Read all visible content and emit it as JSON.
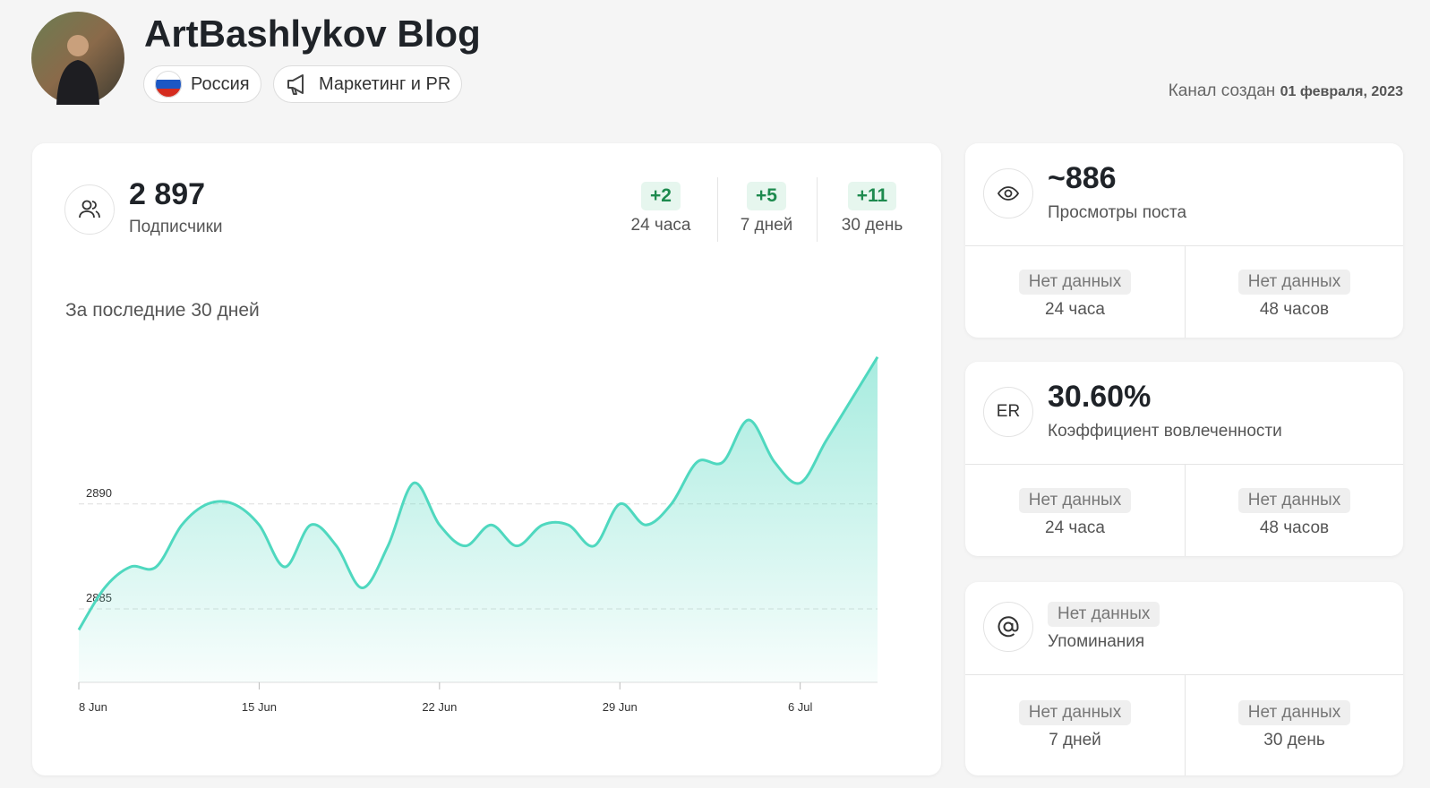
{
  "header": {
    "title": "ArtBashlykov Blog",
    "tags": [
      "Россия",
      "Маркетинг и PR"
    ],
    "created_label": "Канал создан",
    "created_date": "01 февраля, 2023"
  },
  "subscribers": {
    "value": "2 897",
    "label": "Подписчики",
    "deltas": [
      {
        "value": "+2",
        "label": "24 часа"
      },
      {
        "value": "+5",
        "label": "7 дней"
      },
      {
        "value": "+11",
        "label": "30 день"
      }
    ]
  },
  "chart_data": {
    "type": "area",
    "title": "За последние 30 дней",
    "color": "#4fd8bf",
    "categories": [
      "8 Jun",
      null,
      null,
      null,
      null,
      null,
      null,
      "15 Jun",
      null,
      null,
      null,
      null,
      null,
      null,
      "22 Jun",
      null,
      null,
      null,
      null,
      null,
      null,
      "29 Jun",
      null,
      null,
      null,
      null,
      null,
      null,
      "6 Jul",
      null,
      null,
      null
    ],
    "values": [
      2884,
      2886,
      2887,
      2887,
      2889,
      2890,
      2890,
      2889,
      2887,
      2889,
      2888,
      2886,
      2888,
      2891,
      2889,
      2888,
      2889,
      2888,
      2889,
      2889,
      2888,
      2890,
      2889,
      2890,
      2892,
      2892,
      2894,
      2892,
      2891,
      2893,
      2895,
      2897
    ],
    "ylim": [
      2881.5,
      2897.5
    ],
    "yticks": [
      2885,
      2890
    ],
    "grid": true
  },
  "views": {
    "value": "~886",
    "label": "Просмотры поста",
    "cells": [
      {
        "value": "Нет данных",
        "label": "24 часа"
      },
      {
        "value": "Нет данных",
        "label": "48 часов"
      }
    ]
  },
  "er": {
    "icon": "ER",
    "value": "30.60%",
    "label": "Коэффициент вовлеченности",
    "cells": [
      {
        "value": "Нет данных",
        "label": "24 часа"
      },
      {
        "value": "Нет данных",
        "label": "48 часов"
      }
    ]
  },
  "mentions": {
    "value": "Нет данных",
    "label": "Упоминания",
    "cells": [
      {
        "value": "Нет данных",
        "label": "7 дней"
      },
      {
        "value": "Нет данных",
        "label": "30 день"
      }
    ]
  }
}
